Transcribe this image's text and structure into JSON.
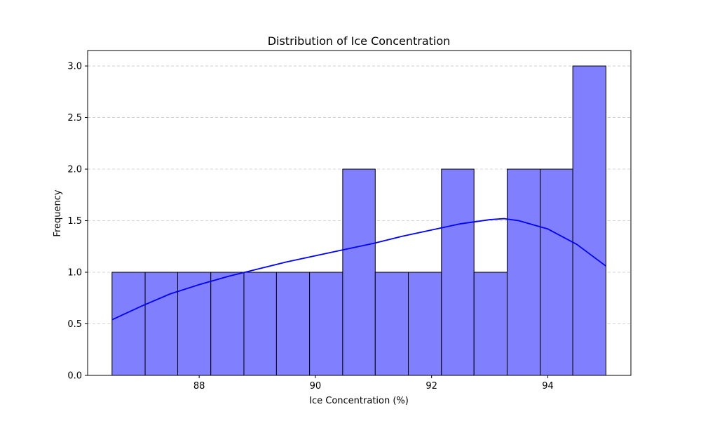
{
  "chart_data": {
    "type": "bar",
    "title": "Distribution of Ice Concentration",
    "xlabel": "Ice Concentration (%)",
    "ylabel": "Frequency",
    "xlim": [
      86.08,
      95.43
    ],
    "ylim": [
      0,
      3.15
    ],
    "x_ticks": [
      {
        "value": 88,
        "label": "88"
      },
      {
        "value": 90,
        "label": "90"
      },
      {
        "value": 92,
        "label": "92"
      },
      {
        "value": 94,
        "label": "94"
      }
    ],
    "y_ticks": [
      {
        "value": 0,
        "label": "0.0"
      },
      {
        "value": 0.5,
        "label": "0.5"
      },
      {
        "value": 1.0,
        "label": "1.0"
      },
      {
        "value": 1.5,
        "label": "1.5"
      },
      {
        "value": 2.0,
        "label": "2.0"
      },
      {
        "value": 2.5,
        "label": "2.5"
      },
      {
        "value": 3.0,
        "label": "3.0"
      }
    ],
    "bins": [
      {
        "start": 86.5,
        "end": 87.07,
        "count": 1
      },
      {
        "start": 87.07,
        "end": 87.63,
        "count": 1
      },
      {
        "start": 87.63,
        "end": 88.2,
        "count": 1
      },
      {
        "start": 88.2,
        "end": 88.77,
        "count": 1
      },
      {
        "start": 88.77,
        "end": 89.33,
        "count": 1
      },
      {
        "start": 89.33,
        "end": 89.9,
        "count": 1
      },
      {
        "start": 89.9,
        "end": 90.47,
        "count": 1
      },
      {
        "start": 90.47,
        "end": 91.03,
        "count": 2
      },
      {
        "start": 91.03,
        "end": 91.6,
        "count": 1
      },
      {
        "start": 91.6,
        "end": 92.17,
        "count": 1
      },
      {
        "start": 92.17,
        "end": 92.73,
        "count": 2
      },
      {
        "start": 92.73,
        "end": 93.3,
        "count": 1
      },
      {
        "start": 93.3,
        "end": 93.87,
        "count": 2
      },
      {
        "start": 93.87,
        "end": 94.43,
        "count": 2
      },
      {
        "start": 94.43,
        "end": 95.0,
        "count": 3
      }
    ],
    "kde": {
      "x": [
        86.5,
        87.0,
        87.5,
        88.0,
        88.5,
        89.0,
        89.5,
        90.0,
        90.5,
        91.0,
        91.5,
        92.0,
        92.5,
        93.0,
        93.25,
        93.5,
        94.0,
        94.5,
        95.0
      ],
      "y": [
        0.54,
        0.67,
        0.79,
        0.88,
        0.96,
        1.03,
        1.1,
        1.16,
        1.22,
        1.28,
        1.35,
        1.41,
        1.47,
        1.51,
        1.52,
        1.5,
        1.42,
        1.27,
        1.06
      ]
    },
    "grid": "y-dashed",
    "colors": {
      "bar_fill": "#8080ff",
      "bar_edge": "#000000",
      "kde_line": "#0000ff",
      "grid": "#c8c8c8"
    }
  }
}
